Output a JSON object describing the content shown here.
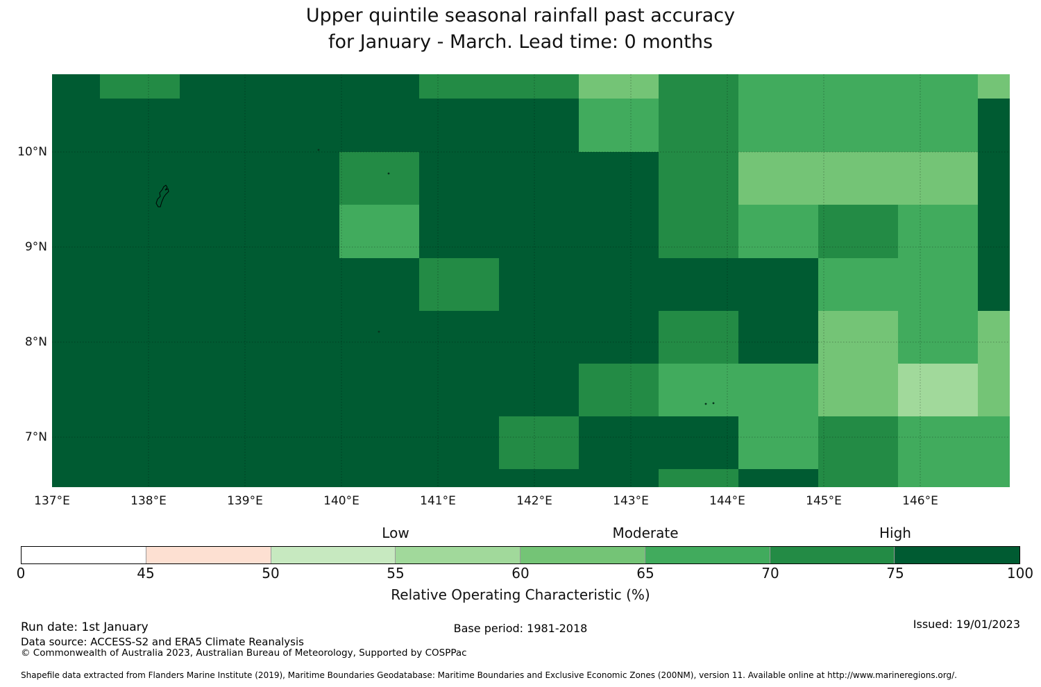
{
  "title": {
    "line1": "Upper quintile seasonal rainfall past accuracy",
    "line2": "for January - March. Lead time: 0 months"
  },
  "chart_data": {
    "type": "heatmap",
    "title": "Upper quintile seasonal rainfall past accuracy for January - March. Lead time: 0 months",
    "x_tick_labels": [
      "137°E",
      "138°E",
      "139°E",
      "140°E",
      "141°E",
      "142°E",
      "143°E",
      "144°E",
      "145°E",
      "146°E"
    ],
    "y_tick_labels": [
      "10°N",
      "9°N",
      "8°N",
      "7°N"
    ],
    "lon_range": [
      137.0,
      147.0
    ],
    "lat_range": [
      6.5,
      10.8
    ],
    "grid_on": true,
    "grid": {
      "n_cols": 13,
      "n_rows": 9,
      "col_edges_lon": [
        137.0,
        137.5,
        138.33,
        139.17,
        140.0,
        140.83,
        141.67,
        142.5,
        143.33,
        144.17,
        145.0,
        145.83,
        146.67,
        147.0
      ],
      "row_edges_lat": [
        10.8,
        10.56,
        10.0,
        9.44,
        8.89,
        8.33,
        7.78,
        7.22,
        6.67,
        6.5
      ]
    },
    "value_bins": {
      "D": {
        "roc_range": "75-100",
        "color": "#005b32"
      },
      "M": {
        "roc_range": "70-75",
        "color": "#238b45"
      },
      "A": {
        "roc_range": "65-70",
        "color": "#41ab5d"
      },
      "L": {
        "roc_range": "60-65",
        "color": "#74c476"
      },
      "P": {
        "roc_range": "55-60",
        "color": "#a1d99b"
      }
    },
    "cells_rows_top_to_bottom": [
      "DMDDDMMLMAAAL",
      "DDDDDDDAMAAAD",
      "DDDDMDDDMLLLD",
      "DDDDADDDMAMAD",
      "DDDDDMDDDDAAD",
      "DDDDDDDDMDLAL",
      "DDDDDDDMAALPL",
      "DDDDDDMDDAMAA",
      "DDDDDDDDMDMAA"
    ],
    "islands": [
      "yap-island-outline",
      "small-islet-1",
      "small-islet-2",
      "small-islet-3",
      "small-islet-4",
      "small-islet-5"
    ]
  },
  "colorbar": {
    "zone_labels": [
      {
        "label": "Low",
        "at": 55
      },
      {
        "label": "Moderate",
        "at": 65
      },
      {
        "label": "High",
        "at": 75
      }
    ],
    "boundaries": [
      0,
      45,
      50,
      55,
      60,
      65,
      70,
      75,
      100
    ],
    "tick_labels": [
      "0",
      "45",
      "50",
      "55",
      "60",
      "65",
      "70",
      "75",
      "100"
    ],
    "segment_colors": [
      "#ffffff",
      "#fde0d2",
      "#c7e9c0",
      "#a1d99b",
      "#74c476",
      "#41ab5d",
      "#238b45",
      "#005b32"
    ],
    "axis_label": "Relative Operating Characteristic (%)"
  },
  "footer": {
    "run_date": "Run date: 1st January",
    "data_source": "Data source: ACCESS-S2 and ERA5 Climate Reanalysis",
    "copyright": "© Commonwealth of Australia 2023, Australian Bureau of Meteorology, Supported by COSPPac",
    "base_period": "Base period: 1981-2018",
    "issued": "Issued: 19/01/2023",
    "shapefile_note": "Shapefile data extracted from Flanders Marine Institute (2019), Maritime Boundaries Geodatabase: Maritime Boundaries and Exclusive Economic Zones (200NM), version 11. Available online at http://www.marineregions.org/."
  }
}
